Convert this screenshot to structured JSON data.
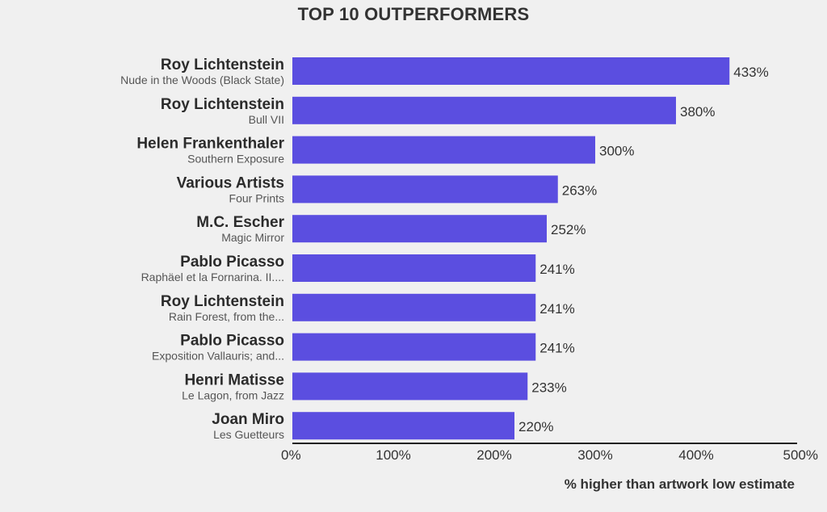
{
  "chart_data": {
    "type": "bar",
    "orientation": "horizontal",
    "title": "TOP 10 OUTPERFORMERS",
    "xlabel": "% higher than artwork low estimate",
    "xlim": [
      0,
      500
    ],
    "xticks": [
      "0%",
      "100%",
      "200%",
      "300%",
      "400%",
      "500%"
    ],
    "bar_color": "#5b4ee0",
    "categories": [
      {
        "artist": "Roy Lichtenstein",
        "work": "Nude in the Woods (Black State)",
        "value": 433,
        "label": "433%"
      },
      {
        "artist": "Roy Lichtenstein",
        "work": "Bull VII",
        "value": 380,
        "label": "380%"
      },
      {
        "artist": "Helen Frankenthaler",
        "work": "Southern Exposure",
        "value": 300,
        "label": "300%"
      },
      {
        "artist": "Various Artists",
        "work": "Four Prints",
        "value": 263,
        "label": "263%"
      },
      {
        "artist": "M.C. Escher",
        "work": "Magic Mirror",
        "value": 252,
        "label": "252%"
      },
      {
        "artist": "Pablo Picasso",
        "work": "Raphäel et la Fornarina. II....",
        "value": 241,
        "label": "241%"
      },
      {
        "artist": "Roy Lichtenstein",
        "work": "Rain Forest, from the...",
        "value": 241,
        "label": "241%"
      },
      {
        "artist": "Pablo Picasso",
        "work": "Exposition Vallauris; and...",
        "value": 241,
        "label": "241%"
      },
      {
        "artist": "Henri Matisse",
        "work": "Le Lagon, from Jazz",
        "value": 233,
        "label": "233%"
      },
      {
        "artist": "Joan Miro",
        "work": "Les Guetteurs",
        "value": 220,
        "label": "220%"
      }
    ]
  }
}
